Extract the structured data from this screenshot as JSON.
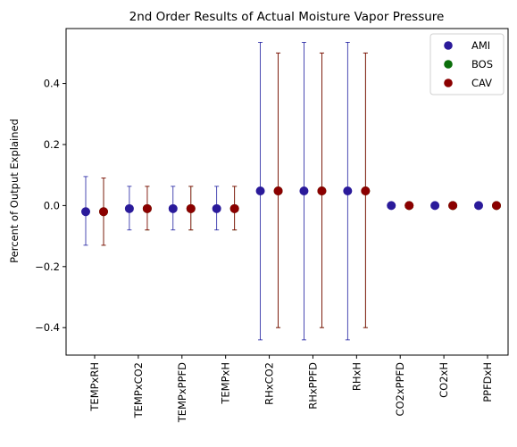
{
  "chart_data": {
    "type": "scatter",
    "title": "2nd Order Results of Actual Moisture Vapor Pressure",
    "xlabel": "",
    "ylabel": "Percent of Output Explained",
    "categories": [
      "TEMPxRH",
      "TEMPxCO2",
      "TEMPxPPFD",
      "TEMPxH",
      "RHxCO2",
      "RHxPPFD",
      "RHxH",
      "CO2xPPFD",
      "CO2xH",
      "PPFDxH"
    ],
    "ylim": [
      -0.49,
      0.58
    ],
    "yticks": [
      -0.4,
      -0.2,
      0.0,
      0.2,
      0.4
    ],
    "ytick_labels": [
      "−0.4",
      "−0.2",
      "0.0",
      "0.2",
      "0.4"
    ],
    "grid": false,
    "legend_position": "top-right",
    "series": [
      {
        "name": "AMI",
        "color": "#2a1a9a",
        "errorbar_color": "#1e1ea0",
        "values": [
          -0.02,
          -0.01,
          -0.01,
          -0.01,
          0.048,
          0.048,
          0.048,
          0.0,
          0.0,
          0.0
        ],
        "lower": [
          -0.13,
          -0.08,
          -0.08,
          -0.08,
          -0.44,
          -0.44,
          -0.44,
          0.0,
          0.0,
          0.0
        ],
        "upper": [
          0.095,
          0.063,
          0.063,
          0.063,
          0.535,
          0.535,
          0.535,
          0.0,
          0.0,
          0.0
        ]
      },
      {
        "name": "BOS",
        "color": "#0a6e0a",
        "errorbar_color": "#0a6e0a",
        "values": [
          -0.02,
          -0.01,
          -0.01,
          -0.01,
          0.048,
          0.048,
          0.048,
          0.0,
          0.0,
          0.0
        ],
        "lower": [
          -0.13,
          -0.08,
          -0.08,
          -0.08,
          -0.4,
          -0.4,
          -0.4,
          0.0,
          0.0,
          0.0
        ],
        "upper": [
          0.09,
          0.063,
          0.063,
          0.063,
          0.5,
          0.5,
          0.5,
          0.0,
          0.0,
          0.0
        ]
      },
      {
        "name": "CAV",
        "color": "#8b0000",
        "errorbar_color": "#8b0000",
        "values": [
          -0.02,
          -0.01,
          -0.01,
          -0.01,
          0.048,
          0.048,
          0.048,
          0.0,
          0.0,
          0.0
        ],
        "lower": [
          -0.13,
          -0.08,
          -0.08,
          -0.08,
          -0.4,
          -0.4,
          -0.4,
          0.0,
          0.0,
          0.0
        ],
        "upper": [
          0.09,
          0.063,
          0.063,
          0.063,
          0.5,
          0.5,
          0.5,
          0.0,
          0.0,
          0.0
        ]
      }
    ]
  }
}
